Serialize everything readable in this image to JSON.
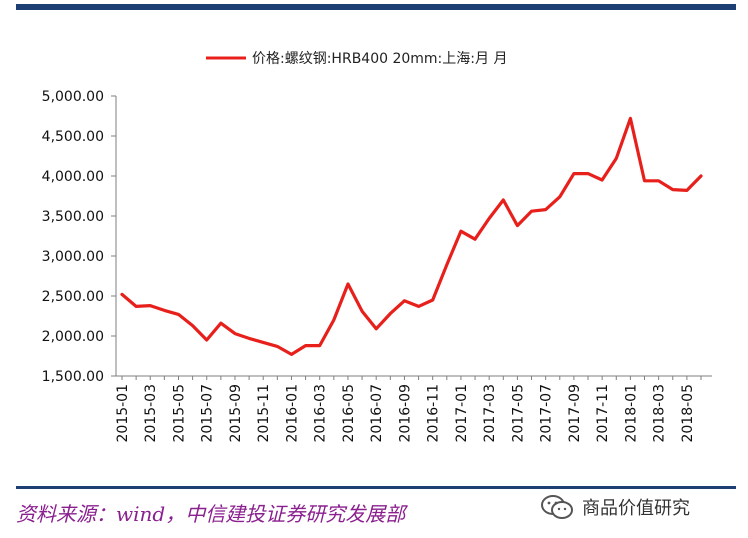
{
  "chart_data": {
    "type": "line",
    "legend": [
      "价格:螺纹钢:HRB400 20mm:上海:月 月"
    ],
    "series": [
      {
        "name": "价格:螺纹钢:HRB400 20mm:上海:月 月",
        "color": "#e8201c",
        "values": [
          2520,
          2370,
          2380,
          2320,
          2270,
          2130,
          1950,
          2160,
          2030,
          1970,
          1920,
          1870,
          1770,
          1880,
          1880,
          2200,
          2650,
          2310,
          2090,
          2280,
          2440,
          2370,
          2450,
          2890,
          3310,
          3210,
          3470,
          3700,
          3380,
          3560,
          3580,
          3740,
          4030,
          4030,
          3950,
          4220,
          4720,
          3940,
          3940,
          3830,
          3820,
          4000
        ]
      }
    ],
    "x_tick_labels": [
      "2015-01",
      "2015-03",
      "2015-05",
      "2015-07",
      "2015-09",
      "2015-11",
      "2016-01",
      "2016-03",
      "2016-05",
      "2016-07",
      "2016-09",
      "2016-11",
      "2017-01",
      "2017-03",
      "2017-05",
      "2017-07",
      "2017-09",
      "2017-11",
      "2018-01",
      "2018-03",
      "2018-05"
    ],
    "y_tick_labels": [
      "5,000.00",
      "4,500.00",
      "4,000.00",
      "3,500.00",
      "3,000.00",
      "2,500.00",
      "2,000.00",
      "1,500.00"
    ],
    "y_ticks": [
      5000,
      4500,
      4000,
      3500,
      3000,
      2500,
      2000,
      1500
    ],
    "ylim": [
      1500,
      5000
    ],
    "title": "",
    "xlabel": "",
    "ylabel": ""
  },
  "footer": {
    "source": "资料来源：wind，中信建投证券研究发展部",
    "watermark": "商品价值研究"
  }
}
